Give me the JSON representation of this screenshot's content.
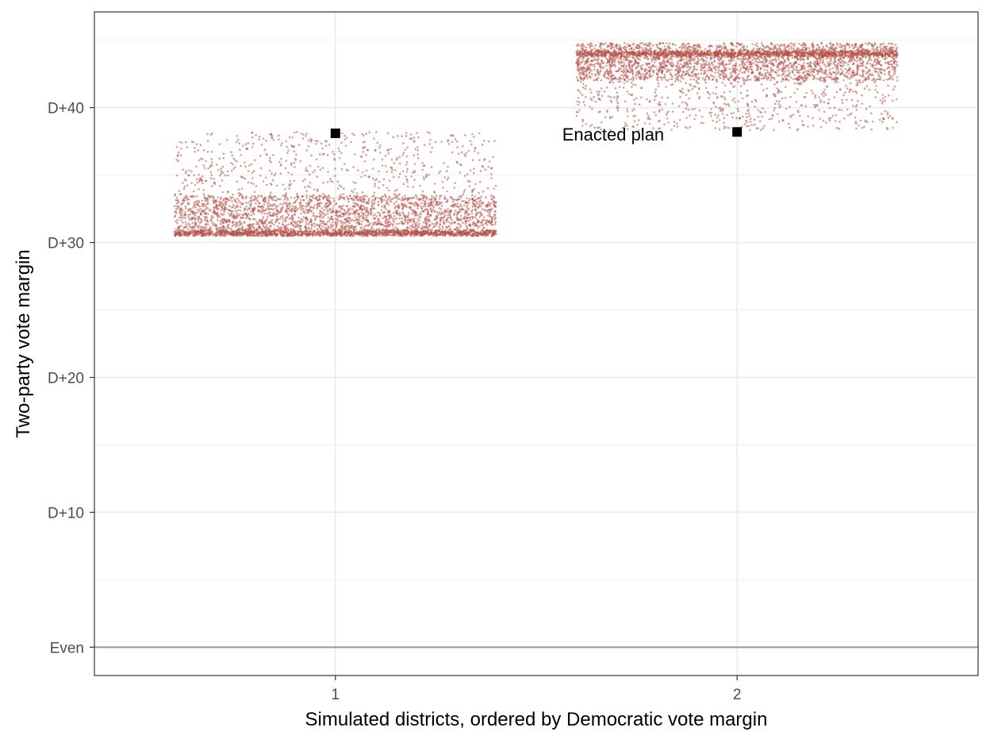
{
  "chart_data": {
    "type": "scatter",
    "title": "",
    "xlabel": "Simulated districts, ordered by Democratic vote margin",
    "ylabel": "Two-party vote margin",
    "x_ticks": [
      {
        "value": 1,
        "label": "1"
      },
      {
        "value": 2,
        "label": "2"
      }
    ],
    "y_ticks": [
      {
        "value": 0,
        "label": "Even"
      },
      {
        "value": 10,
        "label": "D+10"
      },
      {
        "value": 20,
        "label": "D+20"
      },
      {
        "value": 30,
        "label": "D+30"
      },
      {
        "value": 40,
        "label": "D+40"
      }
    ],
    "xlim": [
      0.4,
      2.6
    ],
    "ylim": [
      -2.1,
      47.1
    ],
    "grid": true,
    "reference_line": {
      "y": 0,
      "color": "#999999"
    },
    "simulations": {
      "color": "#b5544a",
      "jitter_width": 0.4,
      "districts": [
        {
          "district": 1,
          "min": 30.5,
          "max": 38.2,
          "dense_band": [
            30.5,
            33.5
          ],
          "mode": 30.7
        },
        {
          "district": 2,
          "min": 38.3,
          "max": 44.8,
          "dense_band": [
            42.0,
            44.8
          ],
          "mode": 44.0
        }
      ]
    },
    "enacted": {
      "label": "Enacted plan",
      "color": "#000000",
      "points": [
        {
          "district": 1,
          "y": 38.1
        },
        {
          "district": 2,
          "y": 38.2
        }
      ]
    }
  }
}
